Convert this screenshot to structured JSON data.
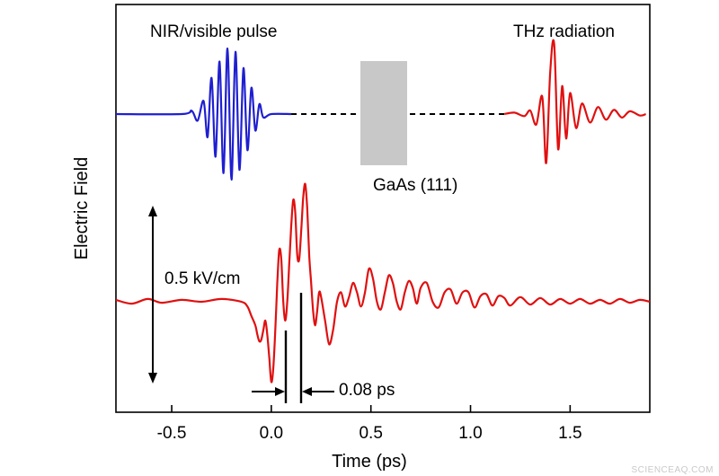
{
  "watermark": "SCIENCEAQ.COM",
  "chart_data": {
    "type": "line",
    "title": "",
    "xlabel": "Time (ps)",
    "ylabel": "Electric Field",
    "xlim": [
      -0.78,
      1.9
    ],
    "x_ticks": [
      -0.5,
      0.0,
      0.5,
      1.0,
      1.5
    ],
    "x_tick_labels": [
      "-0.5",
      "0.0",
      "0.5",
      "1.0",
      "1.5"
    ],
    "y_ticks_shown": false,
    "grid": false,
    "legend": "none",
    "colors": {
      "nir": "#1f1fd0",
      "thz": "#e01010",
      "dash": "#000000",
      "crystal": "#c8c8c8"
    },
    "annotations": {
      "nir_label": "NIR/visible pulse",
      "thz_label": "THz radiation",
      "crystal_label": "GaAs (111)",
      "amplitude_label": "0.5 kV/cm",
      "interval_label": "0.08 ps"
    },
    "series": [
      {
        "id": "nir",
        "role": "schematic NIR/visible pulse (top trace)",
        "x": [
          -0.78,
          -0.45,
          -0.4,
          -0.37,
          -0.34,
          -0.32,
          -0.3,
          -0.28,
          -0.26,
          -0.24,
          -0.22,
          -0.2,
          -0.18,
          -0.16,
          -0.14,
          -0.12,
          -0.1,
          -0.08,
          -0.06,
          -0.04,
          0.0,
          0.1
        ],
        "y": [
          0,
          0,
          0.05,
          -0.1,
          0.2,
          -0.35,
          0.55,
          -0.65,
          0.8,
          -0.9,
          1.0,
          -1.0,
          0.95,
          -0.85,
          0.7,
          -0.55,
          0.4,
          -0.25,
          0.15,
          -0.05,
          0,
          0
        ]
      },
      {
        "id": "thz_top",
        "role": "schematic emitted THz pulse (top trace)",
        "x": [
          1.17,
          1.22,
          1.27,
          1.3,
          1.33,
          1.36,
          1.38,
          1.4,
          1.42,
          1.44,
          1.46,
          1.48,
          1.5,
          1.53,
          1.56,
          1.6,
          1.64,
          1.68,
          1.72,
          1.76,
          1.8,
          1.85,
          1.88
        ],
        "y": [
          0,
          0.02,
          -0.03,
          0.05,
          -0.15,
          0.25,
          -0.7,
          0.6,
          1.0,
          -0.5,
          0.4,
          -0.35,
          0.3,
          -0.2,
          0.15,
          -0.12,
          0.1,
          -0.08,
          0.06,
          -0.05,
          0.04,
          -0.02,
          0
        ]
      },
      {
        "id": "thz_main",
        "role": "measured THz waveform (bottom trace)",
        "x": [
          -0.78,
          -0.7,
          -0.62,
          -0.55,
          -0.45,
          -0.35,
          -0.25,
          -0.15,
          -0.12,
          -0.1,
          -0.08,
          -0.07,
          -0.06,
          -0.05,
          -0.04,
          -0.03,
          -0.02,
          -0.01,
          0.0,
          0.01,
          0.02,
          0.03,
          0.04,
          0.05,
          0.06,
          0.07,
          0.08,
          0.09,
          0.1,
          0.11,
          0.12,
          0.13,
          0.14,
          0.15,
          0.16,
          0.17,
          0.18,
          0.19,
          0.2,
          0.21,
          0.22,
          0.23,
          0.24,
          0.25,
          0.27,
          0.29,
          0.31,
          0.33,
          0.35,
          0.37,
          0.39,
          0.41,
          0.43,
          0.45,
          0.47,
          0.49,
          0.51,
          0.53,
          0.55,
          0.57,
          0.59,
          0.61,
          0.63,
          0.65,
          0.67,
          0.69,
          0.71,
          0.73,
          0.75,
          0.78,
          0.81,
          0.84,
          0.87,
          0.9,
          0.93,
          0.96,
          0.99,
          1.02,
          1.05,
          1.08,
          1.11,
          1.14,
          1.17,
          1.2,
          1.25,
          1.3,
          1.35,
          1.4,
          1.45,
          1.5,
          1.55,
          1.6,
          1.65,
          1.7,
          1.75,
          1.8,
          1.85,
          1.9
        ],
        "y": [
          0.02,
          -0.02,
          0.03,
          -0.01,
          0.02,
          0.0,
          0.03,
          0.0,
          -0.05,
          -0.15,
          -0.25,
          -0.35,
          -0.42,
          -0.4,
          -0.3,
          -0.2,
          -0.35,
          -0.6,
          -0.85,
          -0.7,
          -0.3,
          0.2,
          0.55,
          0.45,
          0.0,
          -0.2,
          0.0,
          0.4,
          0.8,
          1.08,
          0.95,
          0.5,
          0.45,
          0.75,
          1.1,
          1.25,
          1.0,
          0.5,
          0.2,
          -0.1,
          -0.25,
          -0.1,
          0.1,
          0.05,
          -0.2,
          -0.45,
          -0.3,
          0.0,
          0.1,
          -0.05,
          0.05,
          0.2,
          0.1,
          -0.05,
          0.1,
          0.35,
          0.25,
          0.0,
          -0.08,
          0.1,
          0.28,
          0.2,
          0.0,
          -0.08,
          0.1,
          0.22,
          0.15,
          -0.02,
          0.15,
          0.2,
          0.0,
          -0.06,
          0.1,
          0.13,
          -0.02,
          0.1,
          0.1,
          -0.06,
          0.06,
          0.08,
          -0.04,
          0.06,
          0.04,
          -0.04,
          0.05,
          -0.03,
          0.04,
          -0.03,
          0.03,
          -0.02,
          0.03,
          -0.02,
          0.02,
          -0.02,
          0.03,
          -0.01,
          0.02,
          0.0
        ]
      }
    ]
  }
}
